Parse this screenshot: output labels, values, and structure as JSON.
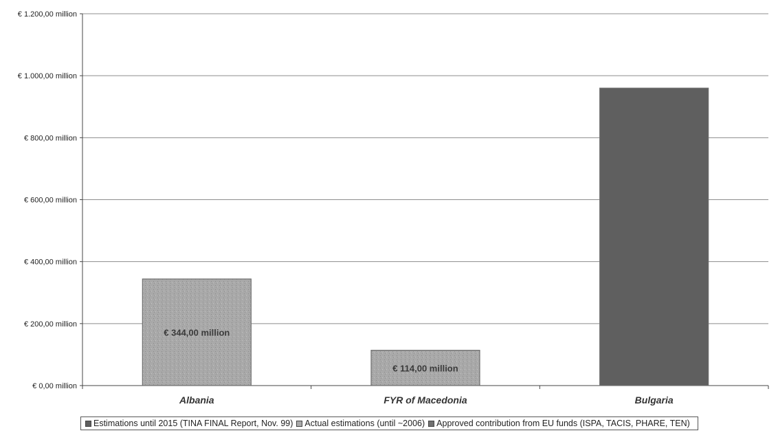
{
  "chart_data": {
    "type": "bar",
    "categories": [
      "Albania",
      "FYR of Macedonia",
      "Bulgaria"
    ],
    "ylim": [
      0,
      1200
    ],
    "yticks": [
      {
        "value": 0,
        "label": "€ 0,00 million"
      },
      {
        "value": 200,
        "label": "€ 200,00 million"
      },
      {
        "value": 400,
        "label": "€ 400,00 million"
      },
      {
        "value": 600,
        "label": "€ 600,00 million"
      },
      {
        "value": 800,
        "label": "€ 800,00 million"
      },
      {
        "value": 1000,
        "label": "€ 1.000,00 million"
      },
      {
        "value": 1200,
        "label": "€ 1.200,00 million"
      }
    ],
    "grid": true,
    "legend_position": "bottom",
    "series": [
      {
        "name": "Estimations until 2015 (TINA FINAL Report, Nov. 99)",
        "color": "#5f5f5f",
        "values": [
          null,
          null,
          960
        ]
      },
      {
        "name": "Actual estimations (until ~2006)",
        "color": "#a9a9a9",
        "values": [
          344,
          114,
          null
        ]
      },
      {
        "name": "Approved contribution from EU funds (ISPA, TACIS, PHARE, TEN)",
        "color": "#707070",
        "values": [
          null,
          null,
          null
        ]
      }
    ],
    "data_labels": [
      {
        "category": "Albania",
        "text": "€ 344,00 million"
      },
      {
        "category": "FYR of Macedonia",
        "text": "€ 114,00 million"
      }
    ]
  }
}
